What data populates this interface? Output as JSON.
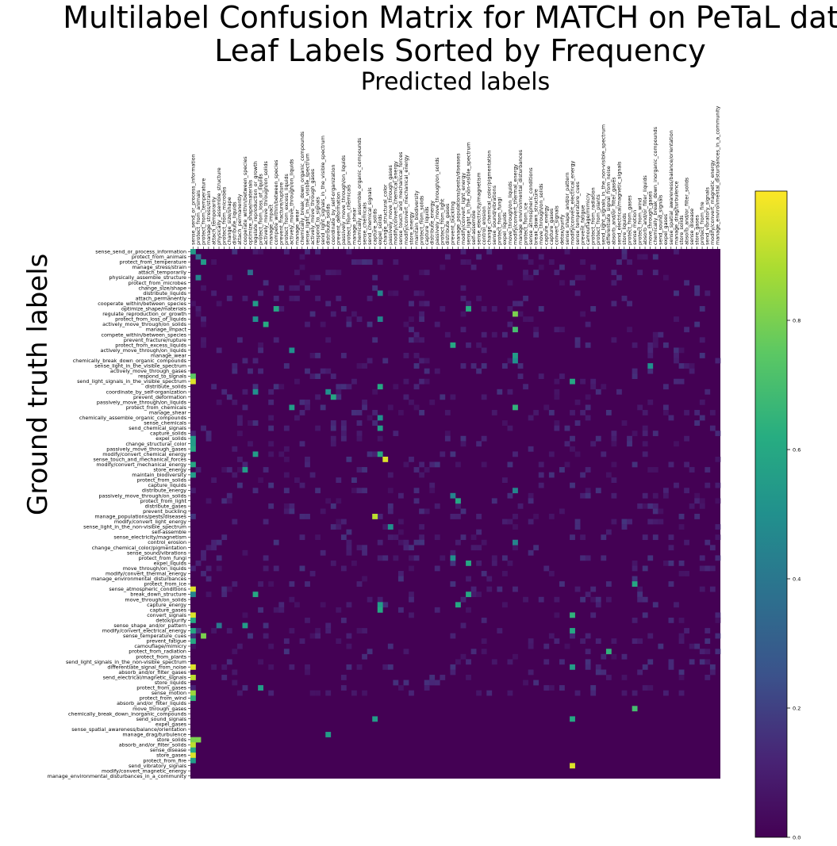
{
  "chart_data": {
    "type": "heatmap",
    "title_line1": "Multilabel Confusion Matrix for MATCH on PeTaL data",
    "title_line2": "Leaf Labels Sorted by Frequency",
    "xlabel": "Predicted labels",
    "ylabel": "Ground truth labels",
    "colorscale": "viridis",
    "colorbar": {
      "min": 0.0,
      "max": 1.0,
      "ticks": [
        "0.0",
        "0.2",
        "0.4",
        "0.6",
        "0.8"
      ]
    },
    "labels": [
      "sense_send_or_process_information",
      "protect_from_animals",
      "protect_from_temperature",
      "manage_stress/strain",
      "attach_temporarily",
      "physically_assemble_structure",
      "protect_from_microbes",
      "change_size/shape",
      "distribute_liquids",
      "attach_permanently",
      "cooperate_within/between_species",
      "optimize_shape/materials",
      "regulate_reproduction_or_growth",
      "protect_from_loss_of_liquids",
      "actively_move_through/on_solids",
      "manage_impact",
      "compete_within/between_species",
      "prevent_fracture/rupture",
      "protect_from_excess_liquids",
      "actively_move_through/on_liquids",
      "manage_wear",
      "chemically_break_down_organic_compounds",
      "sense_light_in_the_visible_spectrum",
      "actively_move_through_gases",
      "respond_to_signals",
      "send_light_signals_in_the_visible_spectrum",
      "distribute_solids",
      "coordinate_by_self-organization",
      "prevent_deformation",
      "passively_move_through/on_liquids",
      "protect_from_chemicals",
      "manage_shear",
      "chemically_assemble_organic_compounds",
      "sense_chemicals",
      "send_chemical_signals",
      "capture_solids",
      "expel_solids",
      "change_structural_color",
      "passively_move_through_gases",
      "modify/convert_chemical_energy",
      "sense_touch_and_mechanical_forces",
      "modify/convert_mechanical_energy",
      "store_energy",
      "maintain_biodiversity",
      "protect_from_solids",
      "capture_liquids",
      "distribute_energy",
      "passively_move_through/on_solids",
      "protect_from_light",
      "distribute_gases",
      "prevent_buckling",
      "manage_populations/pests/diseases",
      "modify/convert_light_energy",
      "sense_light_in_the_non-visible_spectrum",
      "self-assemble",
      "sense_electricity/magnetism",
      "control_erosion",
      "change_chemical_color/pigmentation",
      "sense_sound/vibrations",
      "protect_from_fungi",
      "expel_liquids",
      "move_through/on_liquids",
      "modify/convert_thermal_energy",
      "manage_environmental_disturbances",
      "protect_from_ice",
      "sense_atmospheric_conditions",
      "break_down_structure",
      "move_through/on_solids",
      "capture_energy",
      "capture_gases",
      "convert_signals",
      "detox/purify",
      "sense_shape_and/or_pattern",
      "modify/convert_electrical_energy",
      "sense_temperature_cues",
      "prevent_fatigue",
      "camouflage/mimicry",
      "protect_from_radiation",
      "protect_from_plants",
      "send_light_signals_in_the_non-visible_spectrum",
      "differentiate_signal_from_noise",
      "absorb_and/or_filter_gases",
      "send_electrical/magnetic_signals",
      "store_liquids",
      "protect_from_gases",
      "sense_motion",
      "protect_from_wind",
      "absorb_and/or_filter_liquids",
      "move_through_gases",
      "chemically_break_down_inorganic_compounds",
      "send_sound_signals",
      "expel_gases",
      "sense_spatial_awareness/balance/orientation",
      "manage_drag/turbulence",
      "store_solids",
      "absorb_and/or_filter_solids",
      "sense_disease",
      "store_gases",
      "protect_from_fire",
      "send_vibratory_signals",
      "modify/convert_magnetic_energy",
      "manage_environmental_disturbances_in_a_community"
    ],
    "strong_cells": [
      [
        0,
        0,
        0.55
      ],
      [
        1,
        1,
        0.35
      ],
      [
        2,
        2,
        0.55
      ],
      [
        4,
        11,
        0.35
      ],
      [
        5,
        1,
        0.45
      ],
      [
        8,
        36,
        0.45
      ],
      [
        10,
        12,
        0.55
      ],
      [
        11,
        16,
        0.6
      ],
      [
        11,
        53,
        0.62
      ],
      [
        12,
        62,
        0.8
      ],
      [
        13,
        12,
        0.5
      ],
      [
        13,
        36,
        0.45
      ],
      [
        14,
        14,
        0.62
      ],
      [
        15,
        62,
        0.7
      ],
      [
        18,
        50,
        0.6
      ],
      [
        19,
        19,
        0.5
      ],
      [
        21,
        62,
        0.5
      ],
      [
        22,
        88,
        0.5
      ],
      [
        24,
        0,
        0.75
      ],
      [
        25,
        0,
        0.95
      ],
      [
        25,
        73,
        0.6
      ],
      [
        26,
        36,
        0.6
      ],
      [
        27,
        12,
        0.5
      ],
      [
        27,
        26,
        0.5
      ],
      [
        28,
        27,
        0.6
      ],
      [
        30,
        19,
        0.55
      ],
      [
        30,
        62,
        0.65
      ],
      [
        36,
        0,
        0.55
      ],
      [
        37,
        0,
        0.55
      ],
      [
        38,
        0,
        0.6
      ],
      [
        39,
        12,
        0.55
      ],
      [
        39,
        36,
        0.6
      ],
      [
        40,
        37,
        0.95
      ],
      [
        41,
        0,
        0.6
      ],
      [
        42,
        10,
        0.55
      ],
      [
        43,
        0,
        0.55
      ],
      [
        46,
        62,
        0.45
      ],
      [
        48,
        51,
        0.6
      ],
      [
        51,
        35,
        0.9
      ],
      [
        59,
        50,
        0.5
      ],
      [
        64,
        85,
        0.6
      ],
      [
        65,
        0,
        0.95
      ],
      [
        66,
        0,
        0.45
      ],
      [
        66,
        12,
        0.6
      ],
      [
        66,
        53,
        0.6
      ],
      [
        68,
        36,
        0.55
      ],
      [
        68,
        51,
        0.6
      ],
      [
        69,
        36,
        0.6
      ],
      [
        70,
        0,
        0.95
      ],
      [
        70,
        73,
        0.65
      ],
      [
        72,
        10,
        0.55
      ],
      [
        72,
        5,
        0.4
      ],
      [
        73,
        0,
        0.6
      ],
      [
        73,
        73,
        0.6
      ],
      [
        74,
        2,
        0.8
      ],
      [
        80,
        0,
        0.95
      ],
      [
        80,
        73,
        0.55
      ],
      [
        82,
        0,
        0.9
      ],
      [
        84,
        13,
        0.55
      ],
      [
        85,
        0,
        0.85
      ],
      [
        86,
        0,
        0.65
      ],
      [
        88,
        85,
        0.7
      ],
      [
        93,
        26,
        0.55
      ],
      [
        94,
        0,
        0.8
      ],
      [
        94,
        1,
        0.8
      ],
      [
        95,
        0,
        0.9
      ],
      [
        96,
        0,
        0.6
      ],
      [
        97,
        0,
        0.95
      ],
      [
        98,
        0,
        0.55
      ],
      [
        99,
        73,
        0.95
      ],
      [
        71,
        0,
        0.6
      ],
      [
        60,
        53,
        0.6
      ],
      [
        53,
        38,
        0.5
      ],
      [
        47,
        50,
        0.45
      ],
      [
        34,
        36,
        0.55
      ],
      [
        32,
        36,
        0.5
      ],
      [
        20,
        62,
        0.55
      ],
      [
        56,
        62,
        0.45
      ],
      [
        75,
        0,
        0.6
      ],
      [
        77,
        80,
        0.65
      ],
      [
        90,
        35,
        0.55
      ],
      [
        90,
        73,
        0.6
      ]
    ]
  }
}
